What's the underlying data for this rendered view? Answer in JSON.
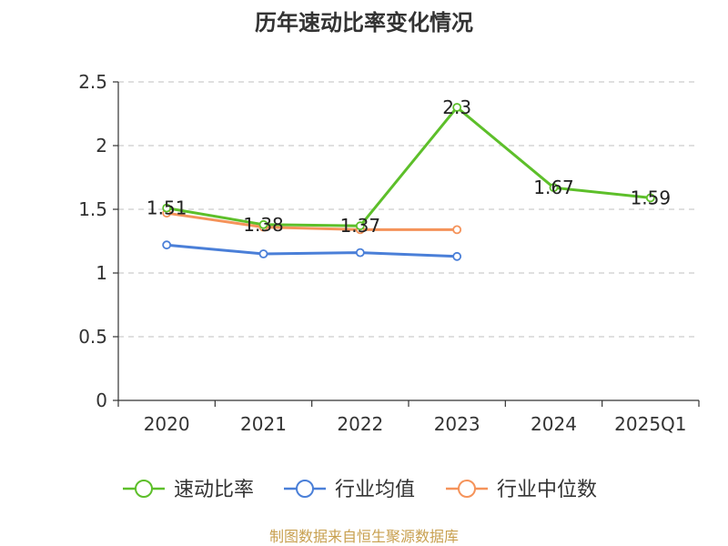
{
  "chart_data": {
    "type": "line",
    "title": "历年速动比率变化情况",
    "xlabel": "",
    "ylabel": "",
    "categories": [
      "2020",
      "2021",
      "2022",
      "2023",
      "2024",
      "2025Q1"
    ],
    "ylim": [
      0,
      2.5
    ],
    "yticks": [
      "0",
      "0.5",
      "1",
      "1.5",
      "2",
      "2.5"
    ],
    "grid": true,
    "legend_position": "bottom",
    "series": [
      {
        "name": "速动比率",
        "color": "#5dbf2a",
        "values": [
          1.51,
          1.38,
          1.37,
          2.3,
          1.67,
          1.59
        ],
        "labels": [
          "1.51",
          "1.38",
          "1.37",
          "2.3",
          "1.67",
          "1.59"
        ]
      },
      {
        "name": "行业均值",
        "color": "#4a7fd8",
        "values": [
          1.22,
          1.15,
          1.16,
          1.13,
          null,
          null
        ]
      },
      {
        "name": "行业中位数",
        "color": "#f5935a",
        "values": [
          1.47,
          1.36,
          1.34,
          1.34,
          null,
          null
        ]
      }
    ]
  },
  "source": "制图数据来自恒生聚源数据库"
}
